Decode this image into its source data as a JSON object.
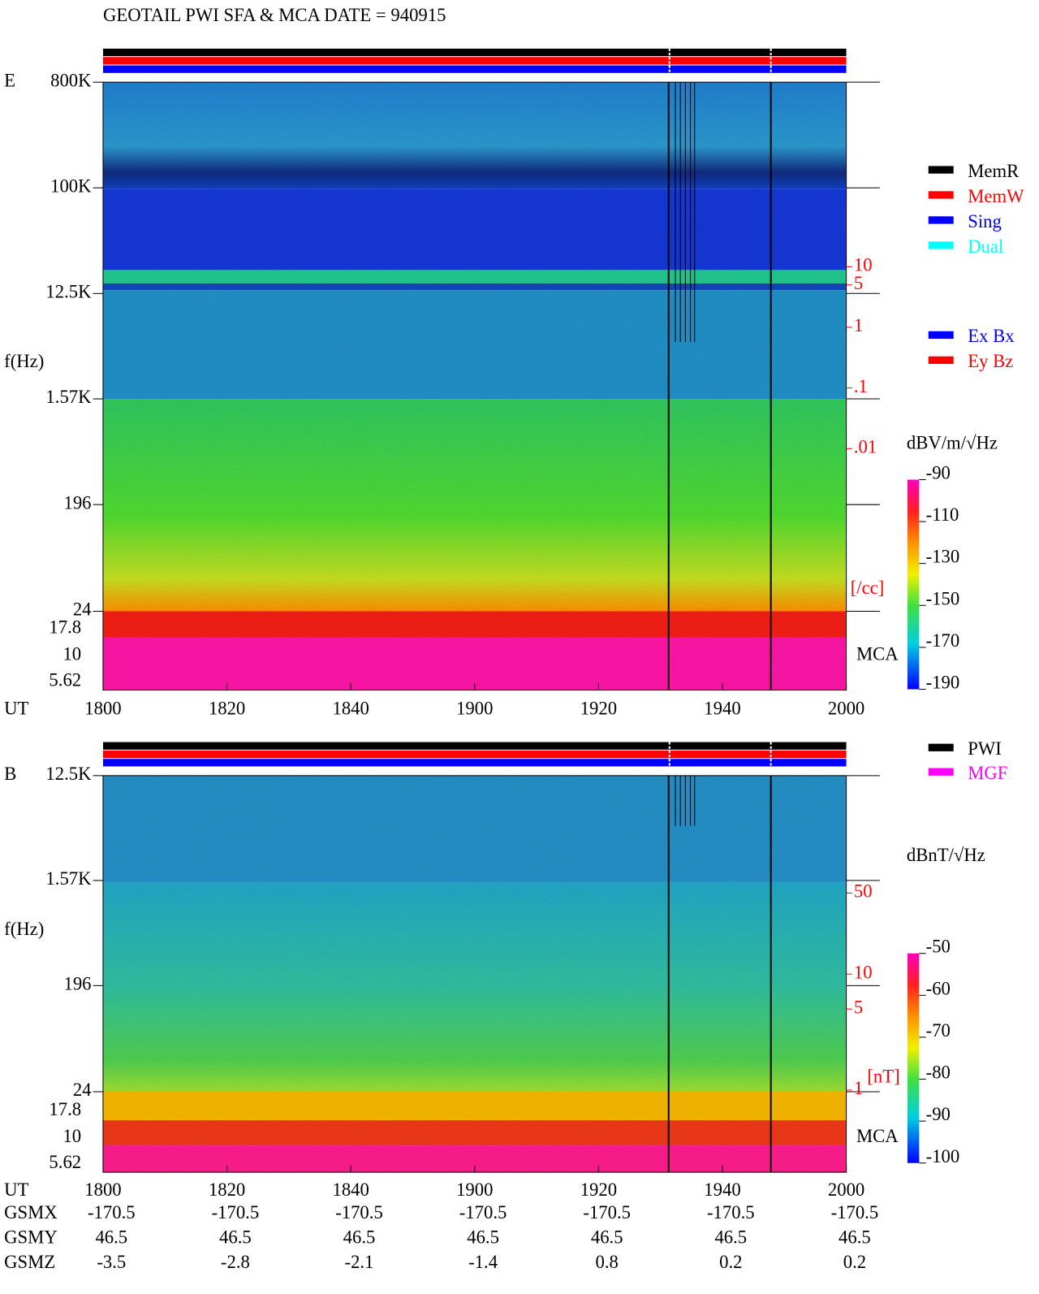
{
  "title": "GEOTAIL  PWI SFA & MCA   DATE = 940915",
  "chart_data": [
    {
      "type": "spectrogram",
      "panel_label": "E",
      "ylabel": "f(Hz)",
      "xlabel": "UT",
      "yscale": "log",
      "ylim": [
        24,
        800000
      ],
      "yticks": [
        {
          "value": 800000,
          "label": "800K"
        },
        {
          "value": 100000,
          "label": "100K"
        },
        {
          "value": 12500,
          "label": "12.5K"
        },
        {
          "value": 1570,
          "label": "1.57K"
        },
        196,
        24
      ],
      "mca_label": "MCA",
      "mca_channels": [
        "17.8",
        "10",
        "5.62"
      ],
      "xlim": [
        0,
        120
      ],
      "xticks": [
        {
          "value": 0,
          "label": "1800"
        },
        {
          "value": 20,
          "label": "1820"
        },
        {
          "value": 40,
          "label": "1840"
        },
        {
          "value": 60,
          "label": "1900"
        },
        {
          "value": 80,
          "label": "1920"
        },
        {
          "value": 100,
          "label": "1940"
        },
        {
          "value": 120,
          "label": "2000"
        }
      ],
      "y2scale": "log",
      "y2lim": [
        0.01,
        10
      ],
      "y2ticks": [
        10,
        5,
        1,
        {
          "value": 0.1,
          "label": ".1"
        },
        {
          "value": 0.01,
          "label": ".01"
        }
      ],
      "y2label": "[/cc]",
      "y2color": "#ff0000",
      "colorbar": {
        "label": "dBV/m/√Hz",
        "lim": [
          -190,
          -90
        ],
        "ticks": [
          -90,
          -110,
          -130,
          -150,
          -170,
          -190
        ]
      },
      "legend": [
        [
          {
            "name": "MemR",
            "color": "#000000"
          },
          {
            "name": "MemW",
            "color": "#ff0000"
          },
          {
            "name": "Sing",
            "color": "#0000ff"
          },
          {
            "name": "Dual",
            "color": "#00ffff"
          }
        ],
        [
          {
            "name": "Ex Bx",
            "color": "#0000ff"
          },
          {
            "name": "Ey Bz",
            "color": "#ff0000"
          }
        ]
      ]
    },
    {
      "type": "spectrogram",
      "panel_label": "B",
      "ylabel": "f(Hz)",
      "xlabel": "UT",
      "yscale": "log",
      "ylim": [
        24,
        12500
      ],
      "yticks": [
        {
          "value": 12500,
          "label": "12.5K"
        },
        {
          "value": 1570,
          "label": "1.57K"
        },
        196,
        24
      ],
      "mca_label": "MCA",
      "mca_channels": [
        "17.8",
        "10",
        "5.62"
      ],
      "xlim": [
        0,
        120
      ],
      "xticks": [
        {
          "value": 0,
          "label": "1800"
        },
        {
          "value": 20,
          "label": "1820"
        },
        {
          "value": 40,
          "label": "1840"
        },
        {
          "value": 60,
          "label": "1900"
        },
        {
          "value": 80,
          "label": "1920"
        },
        {
          "value": 100,
          "label": "1940"
        },
        {
          "value": 120,
          "label": "2000"
        }
      ],
      "y2scale": "log",
      "y2lim": [
        1,
        50
      ],
      "y2ticks": [
        50,
        10,
        5,
        1
      ],
      "y2label": "[nT]",
      "y2color": "#ff0000",
      "colorbar": {
        "label": "dBnT/√Hz",
        "lim": [
          -100,
          -50
        ],
        "ticks": [
          -50,
          -60,
          -70,
          -80,
          -90,
          -100
        ]
      },
      "legend": [
        [
          {
            "name": "PWI",
            "color": "#000000"
          },
          {
            "name": "MGF",
            "color": "#ff00ff"
          }
        ]
      ]
    }
  ],
  "orbit": [
    {
      "name": "GSMX",
      "values": [
        -170.5,
        -170.5,
        -170.5,
        -170.5,
        -170.5,
        -170.5,
        -170.5
      ]
    },
    {
      "name": "GSMY",
      "values": [
        46.5,
        46.5,
        46.5,
        46.5,
        46.5,
        46.5,
        46.5
      ]
    },
    {
      "name": "GSMZ",
      "values": [
        -3.5,
        -2.8,
        -2.1,
        -1.4,
        0.8,
        0.2,
        0.2
      ]
    }
  ]
}
